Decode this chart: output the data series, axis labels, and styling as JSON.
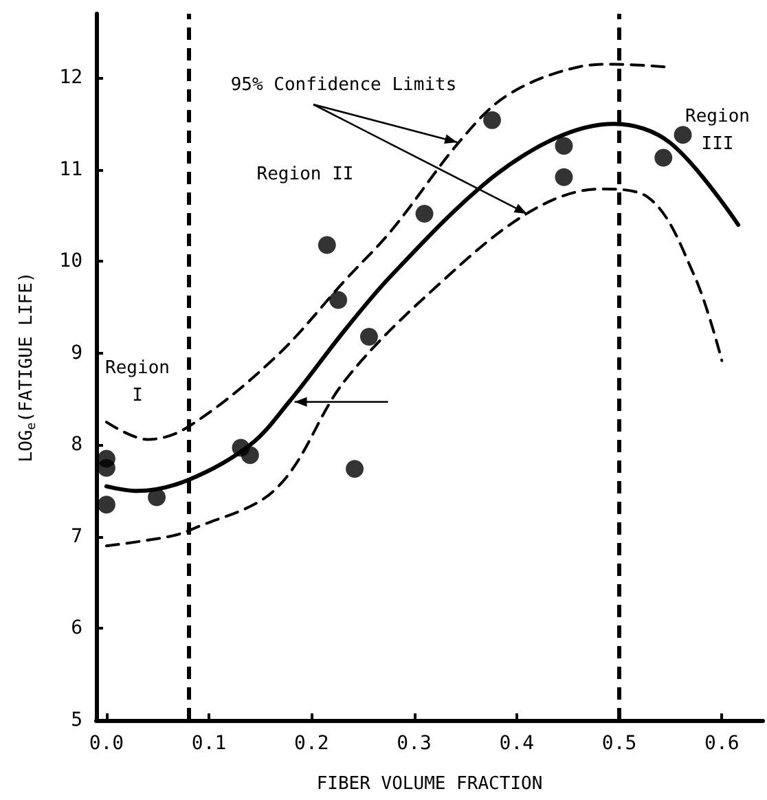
{
  "chart_data": {
    "type": "scatter",
    "xlabel": "FIBER VOLUME FRACTION",
    "ylabel": "LOG$_{e}$(FATIGUE LIFE)",
    "xlim": [
      -0.01,
      0.64
    ],
    "ylim": [
      5,
      12.7
    ],
    "xticks": [
      {
        "value": 0,
        "label": "0.0"
      },
      0.1,
      0.2,
      0.3,
      0.4,
      0.5,
      0.6
    ],
    "yticks": [
      5,
      6,
      7,
      8,
      9,
      10,
      11,
      12
    ],
    "grid": false,
    "series": [
      {
        "color": "#000000",
        "marker": "circle",
        "x": [
          0.0,
          0.0,
          0.0,
          0.049,
          0.131,
          0.14,
          0.215,
          0.226,
          0.242,
          0.256,
          0.31,
          0.376,
          0.446,
          0.446,
          0.543,
          0.562
        ],
        "values": [
          7.85,
          7.75,
          7.35,
          7.43,
          7.97,
          7.89,
          10.18,
          9.58,
          7.74,
          9.18,
          10.52,
          11.54,
          11.26,
          10.92,
          11.13,
          11.38
        ]
      },
      {
        "type": "line",
        "color": "#000000",
        "marker": "none",
        "line_style": "solid",
        "x": [
          0.0,
          0.03,
          0.08,
          0.14,
          0.178,
          0.233,
          0.278,
          0.369,
          0.437,
          0.495,
          0.55,
          0.616
        ],
        "values": [
          7.55,
          7.5,
          7.62,
          8.0,
          8.47,
          9.26,
          9.85,
          10.85,
          11.34,
          11.5,
          11.29,
          10.4
        ]
      },
      {
        "type": "line",
        "color": "#000000",
        "marker": "none",
        "line_style": "dashed",
        "x": [
          0.0,
          0.04,
          0.08,
          0.165,
          0.233,
          0.278,
          0.346,
          0.392,
          0.46,
          0.495,
          0.546
        ],
        "values": [
          8.25,
          8.06,
          8.2,
          8.96,
          9.8,
          10.34,
          11.33,
          11.82,
          12.12,
          12.15,
          12.12
        ]
      },
      {
        "type": "line",
        "color": "#000000",
        "marker": "none",
        "line_style": "dashed",
        "x": [
          0.0,
          0.06,
          0.083,
          0.165,
          0.233,
          0.324,
          0.414,
          0.482,
          0.528,
          0.573,
          0.6
        ],
        "values": [
          6.9,
          7.0,
          7.08,
          7.52,
          8.71,
          9.75,
          10.55,
          10.79,
          10.7,
          9.85,
          8.92
        ]
      }
    ],
    "ref_lines": [
      {
        "axis": "x",
        "value": 0.08,
        "line_style": "dashed"
      },
      {
        "axis": "x",
        "value": 0.5,
        "line_style": "dashed"
      }
    ],
    "annotations": [
      {
        "text": "95% Confidence Limits",
        "x": 0.346,
        "y": 11.33
      },
      "Region II",
      "Region I",
      "Region III"
    ]
  }
}
